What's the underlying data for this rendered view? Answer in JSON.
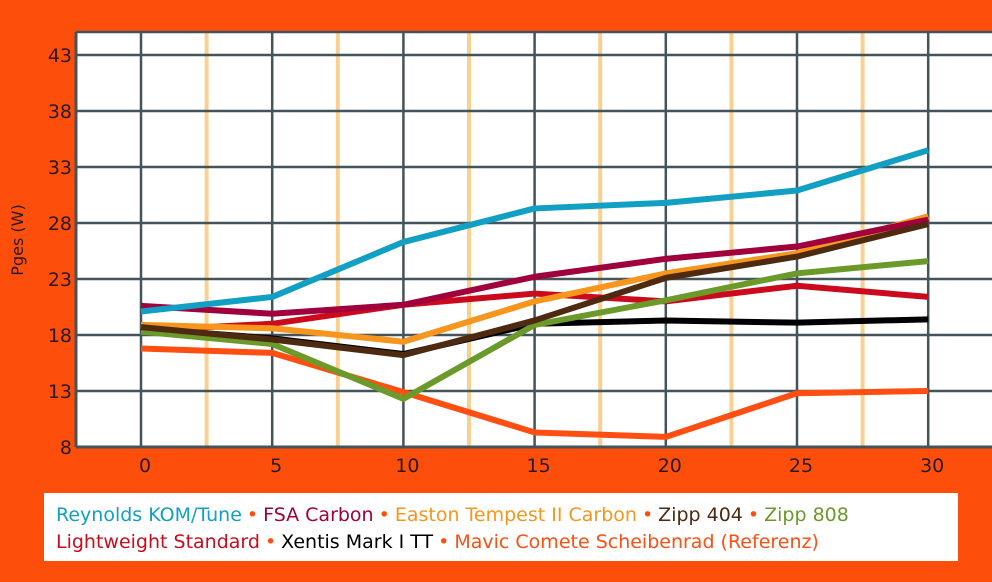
{
  "chart_data": {
    "type": "line",
    "title": "",
    "xlabel": "",
    "ylabel": "Pges (W)",
    "x": [
      0,
      5,
      10,
      15,
      20,
      25,
      30
    ],
    "xticks": [
      "0",
      "5",
      "10",
      "15",
      "20",
      "25",
      "30"
    ],
    "yticks": [
      "8",
      "13",
      "18",
      "23",
      "28",
      "33",
      "38",
      "43"
    ],
    "ytick_values": [
      8,
      13,
      18,
      23,
      28,
      33,
      38,
      43
    ],
    "xlim": [
      -2.5,
      32.5
    ],
    "ylim": [
      8,
      45.2
    ],
    "minor_x_lines": [
      2.5,
      7.5,
      12.5,
      17.5,
      22.5,
      27.5
    ],
    "grid": true,
    "legend_position": "bottom",
    "series": [
      {
        "name": "Reynolds KOM/Tune",
        "color": "#119FC3",
        "values": [
          20.1,
          21.4,
          26.3,
          29.3,
          29.8,
          30.9,
          34.5
        ]
      },
      {
        "name": "FSA Carbon",
        "color": "#A0003C",
        "values": [
          20.6,
          19.9,
          20.7,
          23.2,
          24.8,
          25.9,
          28.3
        ]
      },
      {
        "name": "Easton Tempest II Carbon",
        "color": "#F7951D",
        "values": [
          18.9,
          18.6,
          17.4,
          21.0,
          23.5,
          25.3,
          28.6
        ]
      },
      {
        "name": "Zipp 404",
        "color": "#4D2A10",
        "values": [
          18.7,
          17.6,
          16.2,
          19.3,
          23.1,
          25.0,
          27.9
        ]
      },
      {
        "name": "Zipp 808",
        "color": "#6B9A2A",
        "values": [
          18.3,
          17.2,
          12.3,
          18.9,
          21.1,
          23.5,
          24.6
        ]
      },
      {
        "name": "Lightweight Standard",
        "color": "#CC0A1E",
        "values": [
          18.4,
          19.0,
          20.7,
          21.7,
          21.0,
          22.4,
          21.4
        ]
      },
      {
        "name": "Xentis Mark I TT",
        "color": "#000000",
        "values": [
          18.6,
          17.7,
          16.3,
          19.0,
          19.3,
          19.1,
          19.4
        ]
      },
      {
        "name": "Mavic Comete Scheibenrad (Referenz)",
        "color": "#FF4E12",
        "values": [
          16.8,
          16.4,
          12.9,
          9.3,
          8.9,
          12.8,
          13.0
        ]
      }
    ]
  },
  "legend": {
    "row1": [
      {
        "label": "Reynolds KOM/Tune",
        "color": "#119FC3"
      },
      {
        "label": "FSA Carbon",
        "color": "#A0003C"
      },
      {
        "label": "Easton Tempest II Carbon",
        "color": "#F7951D"
      },
      {
        "label": "Zipp 404",
        "color": "#4D2A10"
      },
      {
        "label": "Zipp 808",
        "color": "#6B9A2A"
      }
    ],
    "row2": [
      {
        "label": "Lightweight Standard",
        "color": "#CC0A1E"
      },
      {
        "label": "Xentis Mark I TT",
        "color": "#000000"
      },
      {
        "label": "Mavic Comete Scheibenrad (Referenz)",
        "color": "#FF4E12"
      }
    ],
    "separator": "•"
  },
  "colors": {
    "background": "#FE4E0C",
    "grid": "#44545A",
    "minor_grid": "#F9D08F",
    "plot_bg": "#FFFFFF"
  }
}
